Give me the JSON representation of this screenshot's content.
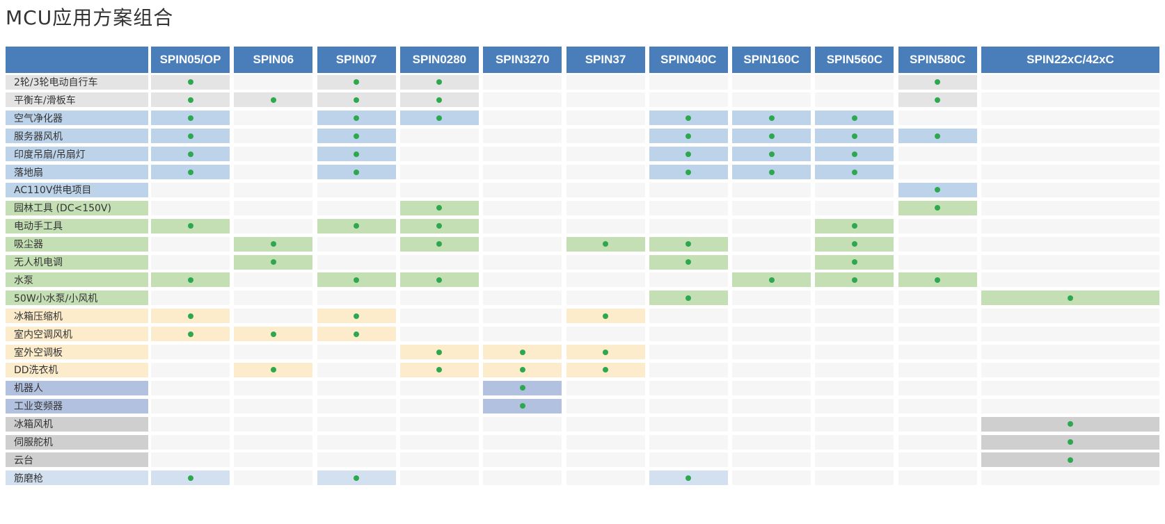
{
  "header": {
    "title": "MCU应用方案组合"
  },
  "table": {
    "columns": [
      "SPIN05/OP",
      "SPIN06",
      "SPIN07",
      "SPIN0280",
      "SPIN3270",
      "SPIN37",
      "SPIN040C",
      "SPIN160C",
      "SPIN560C",
      "SPIN580C",
      "SPIN22xC/42xC"
    ],
    "rows": [
      {
        "label": "2轮/3轮电动自行车",
        "color": "#e4e4e4",
        "cells": [
          true,
          false,
          true,
          true,
          false,
          false,
          false,
          false,
          false,
          true,
          false
        ]
      },
      {
        "label": "平衡车/滑板车",
        "color": "#e4e4e4",
        "cells": [
          true,
          true,
          true,
          true,
          false,
          false,
          false,
          false,
          false,
          true,
          false
        ]
      },
      {
        "label": "空气净化器",
        "color": "#bcd3ea",
        "cells": [
          true,
          false,
          true,
          true,
          false,
          false,
          true,
          true,
          true,
          false,
          false
        ]
      },
      {
        "label": "服务器风机",
        "color": "#bcd3ea",
        "cells": [
          true,
          false,
          true,
          false,
          false,
          false,
          true,
          true,
          true,
          true,
          false
        ]
      },
      {
        "label": "印度吊扇/吊扇灯",
        "color": "#bcd3ea",
        "cells": [
          true,
          false,
          true,
          false,
          false,
          false,
          true,
          true,
          true,
          false,
          false
        ]
      },
      {
        "label": "落地扇",
        "color": "#bcd3ea",
        "cells": [
          true,
          false,
          true,
          false,
          false,
          false,
          true,
          true,
          true,
          false,
          false
        ]
      },
      {
        "label": "AC110V供电项目",
        "color": "#bcd3ea",
        "cells": [
          false,
          false,
          false,
          false,
          false,
          false,
          false,
          false,
          false,
          true,
          false
        ]
      },
      {
        "label": "园林工具 (DC<150V)",
        "color": "#c5dfb5",
        "cells": [
          false,
          false,
          false,
          true,
          false,
          false,
          false,
          false,
          false,
          true,
          false
        ]
      },
      {
        "label": "电动手工具",
        "color": "#c5dfb5",
        "cells": [
          true,
          false,
          true,
          true,
          false,
          false,
          false,
          false,
          true,
          false,
          false
        ]
      },
      {
        "label": "吸尘器",
        "color": "#c5dfb5",
        "cells": [
          false,
          true,
          false,
          true,
          false,
          true,
          true,
          false,
          true,
          false,
          false
        ]
      },
      {
        "label": "无人机电调",
        "color": "#c5dfb5",
        "cells": [
          false,
          true,
          false,
          false,
          false,
          false,
          true,
          false,
          true,
          false,
          false
        ]
      },
      {
        "label": "水泵",
        "color": "#c5dfb5",
        "cells": [
          true,
          false,
          true,
          true,
          false,
          false,
          false,
          true,
          true,
          true,
          false
        ]
      },
      {
        "label": "50W小水泵/小风机",
        "color": "#c5dfb5",
        "cells": [
          false,
          false,
          false,
          false,
          false,
          false,
          true,
          false,
          false,
          false,
          true
        ]
      },
      {
        "label": "冰箱压缩机",
        "color": "#fdeccb",
        "cells": [
          true,
          false,
          true,
          false,
          false,
          true,
          false,
          false,
          false,
          false,
          false
        ]
      },
      {
        "label": "室内空调风机",
        "color": "#fdeccb",
        "cells": [
          true,
          true,
          true,
          false,
          false,
          false,
          false,
          false,
          false,
          false,
          false
        ]
      },
      {
        "label": "室外空调板",
        "color": "#fdeccb",
        "cells": [
          false,
          false,
          false,
          true,
          true,
          true,
          false,
          false,
          false,
          false,
          false
        ]
      },
      {
        "label": "DD洗衣机",
        "color": "#fdeccb",
        "cells": [
          false,
          true,
          false,
          true,
          true,
          true,
          false,
          false,
          false,
          false,
          false
        ]
      },
      {
        "label": "机器人",
        "color": "#b3c1e0",
        "cells": [
          false,
          false,
          false,
          false,
          true,
          false,
          false,
          false,
          false,
          false,
          false
        ]
      },
      {
        "label": "工业变频器",
        "color": "#b3c1e0",
        "cells": [
          false,
          false,
          false,
          false,
          true,
          false,
          false,
          false,
          false,
          false,
          false
        ]
      },
      {
        "label": "冰箱风机",
        "color": "#d0cfcf",
        "cells": [
          false,
          false,
          false,
          false,
          false,
          false,
          false,
          false,
          false,
          false,
          true
        ]
      },
      {
        "label": "伺服舵机",
        "color": "#d0cfcf",
        "cells": [
          false,
          false,
          false,
          false,
          false,
          false,
          false,
          false,
          false,
          false,
          true
        ]
      },
      {
        "label": "云台",
        "color": "#d0cfcf",
        "cells": [
          false,
          false,
          false,
          false,
          false,
          false,
          false,
          false,
          false,
          false,
          true
        ]
      },
      {
        "label": "筋磨枪",
        "color": "#d3e0f0",
        "cells": [
          true,
          false,
          true,
          false,
          false,
          false,
          true,
          false,
          false,
          false,
          false
        ]
      }
    ]
  }
}
